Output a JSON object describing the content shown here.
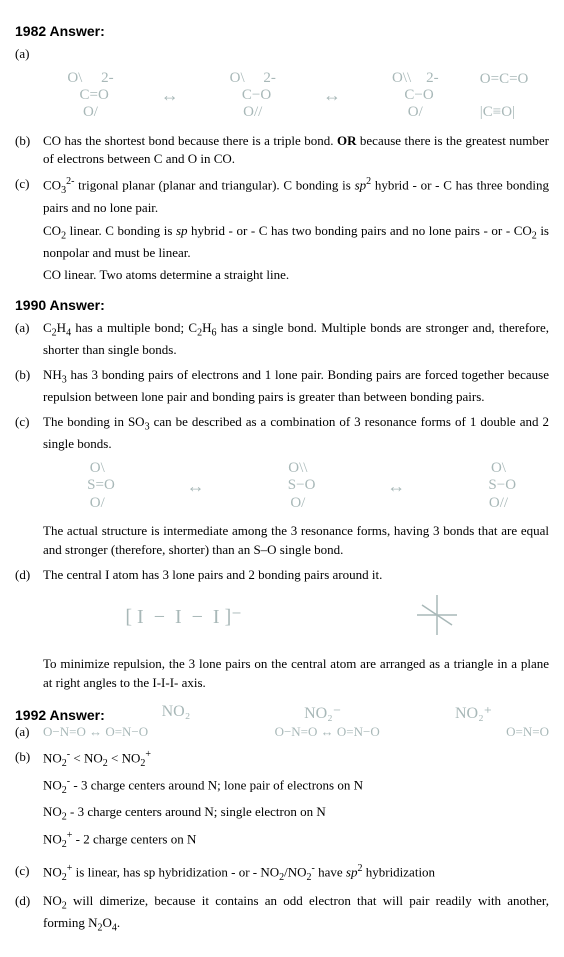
{
  "y1982": {
    "header": "1982 Answer:",
    "a_label": "(a)",
    "b_label": "(b)",
    "b_text": "CO has the shortest bond because there is a triple bond. <b>OR</b> because there is the greatest number of electrons between C and O in CO.",
    "c_label": "(c)",
    "c_p1": "CO<span class='sub'>3</span><span class='sup'>2-</span> trigonal planar (planar and triangular). C bonding is <i>sp</i><span class='sup'>2</span> hybrid - or - C has three bonding pairs and no lone pair.",
    "c_p2": "CO<span class='sub'>2</span> linear. C bonding is <i>sp</i> hybrid - or - C has two bonding pairs and no lone pairs - or - CO<span class='sub'>2</span> is nonpolar and must be linear.",
    "c_p3": "CO linear. Two atoms determine a straight line.",
    "diag1": " O\\     2-\n   C=O\n O/",
    "diag2": " O\\     2-\n   C−O\n O//",
    "diag3": " O\\\\    2-\n   C−O\n O/",
    "side1": "O=C=O",
    "side2": "|C≡O|"
  },
  "y1990": {
    "header": "1990 Answer:",
    "a_label": "(a)",
    "a_text": "C<span class='sub'>2</span>H<span class='sub'>4</span> has a multiple bond; C<span class='sub'>2</span>H<span class='sub'>6</span> has a single bond. Multiple bonds are stronger and, therefore, shorter than single bonds.",
    "b_label": "(b)",
    "b_text": "NH<span class='sub'>3</span> has 3 bonding pairs of electrons and 1 lone pair. Bonding pairs are forced together because repulsion between lone pair and bonding pairs is greater than between bonding pairs.",
    "c_label": "(c)",
    "c_text": "The bonding in SO<span class='sub'>3</span> can be described as a combination of 3 resonance forms of 1 double and 2 single bonds.",
    "so3_1": " O\\\n   S=O\n O/",
    "so3_2": " O\\\\\n   S−O\n O/",
    "so3_3": " O\\\n   S−O\n O//",
    "c_text2": "The actual structure is intermediate among the 3 resonance forms, having 3 bonds that are equal and stronger (therefore, shorter) than an S–O single bond.",
    "d_label": "(d)",
    "d_text": "The central I atom has 3 lone pairs and 2 bonding pairs around it.",
    "i3": "[ I  −  I  −  I ]⁻",
    "d_text2": "To minimize repulsion, the 3 lone pairs on the central atom are arranged as a triangle in a plane at right angles to the I-I-I- axis."
  },
  "y1992": {
    "header": "1992 Answer:",
    "no2_a": "NO₂",
    "no2_b": "NO₂⁻",
    "no2_c": "NO₂⁺",
    "a_label": "(a)",
    "lew1": "O−N=O  ↔  O=N−O",
    "lew2": "O−N=O  ↔  O=N−O",
    "lew3": "O=N=O",
    "b_label": "(b)",
    "b_p1": "NO<span class='sub'>2</span><span class='sup'>-</span> &lt; NO<span class='sub'>2</span> &lt; NO<span class='sub'>2</span><span class='sup'>+</span>",
    "b_p2": "NO<span class='sub'>2</span><span class='sup'>-</span> - 3 charge centers around N; lone pair of electrons on N",
    "b_p3": "NO<span class='sub'>2</span> - 3 charge centers around N; single electron on N",
    "b_p4": "NO<span class='sub'>2</span><span class='sup'>+</span> - 2 charge centers on N",
    "c_label": "(c)",
    "c_text": "NO<span class='sub'>2</span><span class='sup'>+</span> is linear, has sp hybridization - or - NO<span class='sub'>2</span>/NO<span class='sub'>2</span><span class='sup'>-</span> have <i>sp</i><span class='sup'>2</span> hybridization",
    "d_label": "(d)",
    "d_text": "NO<span class='sub'>2</span> will dimerize, because it contains an odd electron that will pair readily with another, forming N<span class='sub'>2</span>O<span class='sub'>4</span>."
  }
}
